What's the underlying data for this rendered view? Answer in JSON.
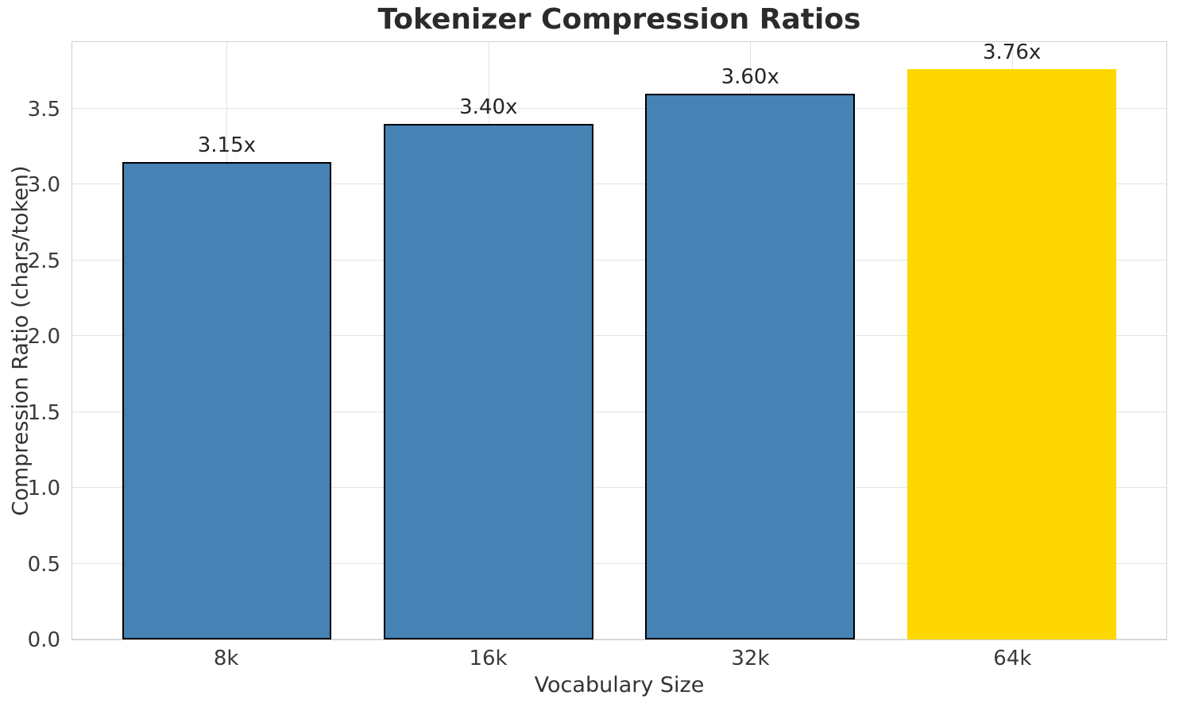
{
  "chart_data": {
    "type": "bar",
    "title": "Tokenizer Compression Ratios",
    "xlabel": "Vocabulary Size",
    "ylabel": "Compression Ratio (chars/token)",
    "categories": [
      "8k",
      "16k",
      "32k",
      "64k"
    ],
    "values": [
      3.15,
      3.4,
      3.6,
      3.76
    ],
    "bar_labels": [
      "3.15x",
      "3.40x",
      "3.60x",
      "3.76x"
    ],
    "ylim": [
      0,
      3.95
    ],
    "yticks": [
      0,
      0.5,
      1,
      1.5,
      2,
      2.5,
      3,
      3.5
    ],
    "ytick_labels": [
      "0.0",
      "0.5",
      "1.0",
      "1.5",
      "2.0",
      "2.5",
      "3.0",
      "3.5"
    ],
    "grid": true,
    "legend_position": "none",
    "bar_colors": [
      "#4682B4",
      "#4682B4",
      "#4682B4",
      "#FFD700"
    ],
    "bar_edge_colors": [
      "#000000",
      "#000000",
      "#000000",
      "none"
    ],
    "highlight_index": 3,
    "colors": {
      "grid": "#e2e2e2",
      "spine": "#d0d0d0",
      "text": "#262626",
      "accent_blue": "#4682B4",
      "accent_gold": "#FFD700"
    }
  }
}
